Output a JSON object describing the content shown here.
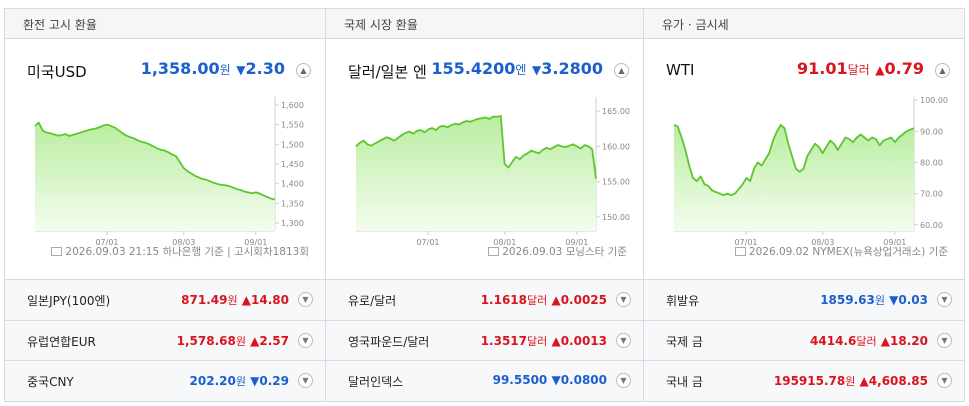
{
  "sections": [
    {
      "header": "환전 고시 환율",
      "main": {
        "name": "미국USD",
        "value": "1,358.00",
        "unit": "원",
        "dir": "down",
        "arrow": "▼",
        "change": "2.30"
      },
      "footer": "2026.09.03 21:15 하나은행 기준 | 고시회차1813회",
      "rows": [
        {
          "name": "일본JPY(100엔)",
          "value": "871.49",
          "unit": "원",
          "dir": "up",
          "arrow": "▲",
          "change": "14.80"
        },
        {
          "name": "유럽연합EUR",
          "value": "1,578.68",
          "unit": "원",
          "dir": "up",
          "arrow": "▲",
          "change": "2.57"
        },
        {
          "name": "중국CNY",
          "value": "202.20",
          "unit": "원",
          "dir": "down",
          "arrow": "▼",
          "change": "0.29"
        }
      ]
    },
    {
      "header": "국제 시장 환율",
      "main": {
        "name": "달러/일본 엔",
        "value": "155.4200",
        "unit": "엔",
        "dir": "down",
        "arrow": "▼",
        "change": "3.2800"
      },
      "footer": "2026.09.03 모닝스타 기준",
      "rows": [
        {
          "name": "유로/달러",
          "value": "1.1618",
          "unit": "달러",
          "dir": "up",
          "arrow": "▲",
          "change": "0.0025"
        },
        {
          "name": "영국파운드/달러",
          "value": "1.3517",
          "unit": "달러",
          "dir": "up",
          "arrow": "▲",
          "change": "0.0013"
        },
        {
          "name": "달러인덱스",
          "value": "99.5500",
          "unit": "",
          "dir": "down",
          "arrow": "▼",
          "change": "0.0800"
        }
      ]
    },
    {
      "header": "유가 · 금시세",
      "main": {
        "name": "WTI",
        "value": "91.01",
        "unit": "달러",
        "dir": "up",
        "arrow": "▲",
        "change": "0.79"
      },
      "footer": "2026.09.02 NYMEX(뉴욕상업거래소) 기준",
      "rows": [
        {
          "name": "휘발유",
          "value": "1859.63",
          "unit": "원",
          "dir": "down",
          "arrow": "▼",
          "change": "0.03"
        },
        {
          "name": "국제 금",
          "value": "4414.6",
          "unit": "달러",
          "dir": "up",
          "arrow": "▲",
          "change": "18.20"
        },
        {
          "name": "국내 금",
          "value": "195915.78",
          "unit": "원",
          "dir": "up",
          "arrow": "▲",
          "change": "4,608.85"
        }
      ]
    }
  ],
  "colors": {
    "up": "#d8141e",
    "down": "#1b5fcf",
    "line": "#5fc52e",
    "fill_top": "#b9eea0",
    "fill_bottom": "#f4fcef"
  },
  "icons": {
    "toggle": "chevron-up-icon",
    "row_toggle": "chevron-down-icon",
    "footer": "document-icon"
  },
  "chart_data": [
    {
      "type": "area",
      "x_ticks": [
        "07/01",
        "08/03",
        "09/01"
      ],
      "ylim": [
        1280,
        1620
      ],
      "y_ticks": [
        "1,600",
        "1,550",
        "1,500",
        "1,450",
        "1,400",
        "1,350",
        "1,300"
      ],
      "y_tick_values": [
        1600,
        1550,
        1500,
        1450,
        1400,
        1350,
        1300
      ],
      "y": [
        1547,
        1555,
        1535,
        1530,
        1528,
        1525,
        1522,
        1523,
        1526,
        1521,
        1524,
        1527,
        1530,
        1533,
        1536,
        1538,
        1540,
        1544,
        1548,
        1550,
        1546,
        1542,
        1535,
        1528,
        1522,
        1518,
        1515,
        1510,
        1506,
        1504,
        1500,
        1495,
        1490,
        1486,
        1484,
        1480,
        1474,
        1470,
        1455,
        1440,
        1432,
        1426,
        1420,
        1416,
        1412,
        1410,
        1406,
        1402,
        1399,
        1397,
        1396,
        1394,
        1390,
        1386,
        1384,
        1380,
        1378,
        1376,
        1378,
        1375,
        1370,
        1366,
        1362,
        1360
      ]
    },
    {
      "type": "area",
      "x_ticks": [
        "07/01",
        "08/01",
        "09/01"
      ],
      "ylim": [
        148,
        167
      ],
      "y_ticks": [
        "165.00",
        "160.00",
        "155.00",
        "150.00"
      ],
      "y_tick_values": [
        165,
        160,
        155,
        150
      ],
      "y": [
        160,
        160.5,
        160.8,
        160.3,
        160.1,
        160.4,
        160.7,
        161.0,
        161.3,
        161.1,
        160.8,
        161.2,
        161.6,
        161.9,
        162.1,
        161.8,
        162.2,
        162.3,
        162.0,
        162.4,
        162.6,
        162.3,
        162.8,
        162.9,
        162.7,
        163.0,
        163.2,
        163.1,
        163.4,
        163.6,
        163.5,
        163.7,
        163.9,
        164.0,
        164.1,
        163.9,
        164.2,
        164.2,
        164.3,
        157.5,
        157.0,
        157.8,
        158.5,
        158.2,
        158.7,
        159.0,
        159.4,
        159.2,
        159.0,
        159.5,
        159.8,
        159.6,
        159.9,
        160.2,
        160.0,
        159.9,
        160.1,
        160.3,
        160.0,
        159.7,
        160.2,
        160.0,
        159.6,
        155.4
      ]
    },
    {
      "type": "area",
      "x_ticks": [
        "07/01",
        "08/03",
        "09/01"
      ],
      "ylim": [
        58,
        101
      ],
      "y_ticks": [
        "100.00",
        "90.00",
        "80.00",
        "70.00",
        "60.00"
      ],
      "y_tick_values": [
        100,
        90,
        80,
        70,
        60
      ],
      "y": [
        92,
        91.5,
        88,
        84,
        79,
        75,
        74,
        75.5,
        73,
        72.5,
        71,
        70.5,
        70,
        69.5,
        70,
        69.5,
        70,
        71.5,
        73,
        75,
        74,
        78,
        80,
        79,
        81,
        83,
        87,
        90,
        92,
        91,
        86,
        82,
        78,
        77,
        78,
        82,
        84,
        86,
        85,
        83,
        85,
        87,
        86,
        84,
        86,
        88,
        87.5,
        86.5,
        88,
        89,
        88,
        87,
        88,
        87.5,
        85.5,
        87,
        87.5,
        88,
        86.5,
        88,
        89,
        90,
        90.5,
        91
      ]
    }
  ]
}
